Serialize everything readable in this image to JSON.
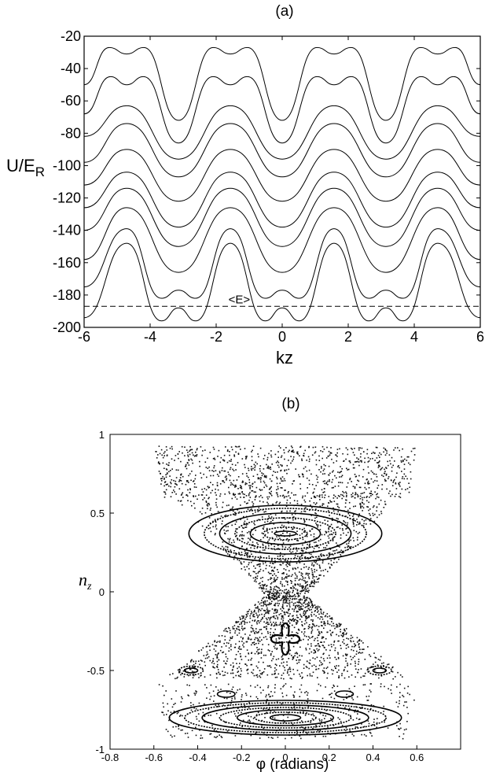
{
  "chart_data": [
    {
      "type": "line",
      "panel_label": "(a)",
      "xlabel": "kz",
      "ylabel_main": "U/E",
      "ylabel_sub": "R",
      "xlim": [
        -6,
        6
      ],
      "ylim": [
        -200,
        -20
      ],
      "x_ticks": [
        "-6",
        "-4",
        "-2",
        "0",
        "2",
        "4",
        "6"
      ],
      "y_ticks": [
        "-20",
        "-40",
        "-60",
        "-80",
        "-100",
        "-120",
        "-140",
        "-160",
        "-180",
        "-200"
      ],
      "x_tick_values": [
        -6,
        -4,
        -2,
        0,
        2,
        4,
        6
      ],
      "y_tick_values": [
        -20,
        -40,
        -60,
        -80,
        -100,
        -120,
        -140,
        -160,
        -180,
        -200
      ],
      "series": [
        {
          "x": [
            -6,
            -5.24,
            -4.71,
            -4.19,
            -3.14,
            -2.09,
            -1.57,
            -1.05,
            0,
            1.05,
            1.57,
            2.09,
            3.14,
            4.19,
            4.71,
            5.24,
            6
          ],
          "y": [
            -50,
            -27,
            -31,
            -27,
            -72,
            -27,
            -31,
            -27,
            -72,
            -27,
            -31,
            -27,
            -72,
            -27,
            -31,
            -27,
            -50
          ]
        },
        {
          "x": [
            -6,
            -5.2,
            -4.71,
            -4.2,
            -3.14,
            -2.1,
            -1.57,
            -1.05,
            0,
            1.05,
            1.57,
            2.1,
            3.14,
            4.2,
            4.71,
            5.2,
            6
          ],
          "y": [
            -68,
            -45,
            -50,
            -45,
            -86,
            -45,
            -50,
            -45,
            -86,
            -45,
            -50,
            -45,
            -86,
            -45,
            -50,
            -45,
            -68
          ]
        },
        {
          "x": [
            -6,
            -4.71,
            -3.14,
            -1.57,
            0,
            1.57,
            3.14,
            4.71,
            6
          ],
          "y": [
            -82,
            -63,
            -96,
            -63,
            -96,
            -63,
            -96,
            -63,
            -82
          ]
        },
        {
          "x": [
            -6,
            -4.71,
            -3.14,
            -1.57,
            0,
            1.57,
            3.14,
            4.71,
            6
          ],
          "y": [
            -98,
            -74,
            -107,
            -74,
            -107,
            -74,
            -107,
            -74,
            -98
          ]
        },
        {
          "x": [
            -6,
            -4.71,
            -3.14,
            -1.57,
            0,
            1.57,
            3.14,
            4.71,
            6
          ],
          "y": [
            -112,
            -90,
            -122,
            -90,
            -122,
            -90,
            -122,
            -90,
            -112
          ]
        },
        {
          "x": [
            -6,
            -4.71,
            -3.14,
            -1.57,
            0,
            1.57,
            3.14,
            4.71,
            6
          ],
          "y": [
            -126,
            -104,
            -138,
            -104,
            -138,
            -104,
            -138,
            -104,
            -126
          ]
        },
        {
          "x": [
            -6,
            -4.71,
            -3.14,
            -1.57,
            0,
            1.57,
            3.14,
            4.71,
            6
          ],
          "y": [
            -140,
            -114,
            -150,
            -114,
            -150,
            -114,
            -150,
            -114,
            -140
          ]
        },
        {
          "x": [
            -6,
            -4.71,
            -3.14,
            -1.57,
            0,
            1.57,
            3.14,
            4.71,
            6
          ],
          "y": [
            -158,
            -126,
            -166,
            -126,
            -166,
            -126,
            -166,
            -126,
            -158
          ]
        },
        {
          "x": [
            -6,
            -4.71,
            -3.66,
            -3.14,
            -2.62,
            -1.57,
            -0.52,
            0,
            0.52,
            1.57,
            2.62,
            3.14,
            3.66,
            4.71,
            6
          ],
          "y": [
            -175,
            -139,
            -182,
            -177,
            -182,
            -139,
            -182,
            -177,
            -182,
            -139,
            -182,
            -177,
            -182,
            -139,
            -175
          ]
        },
        {
          "x": [
            -6,
            -4.71,
            -3.66,
            -3.14,
            -2.62,
            -1.57,
            -0.52,
            0,
            0.52,
            1.57,
            2.62,
            3.14,
            3.66,
            4.71,
            6
          ],
          "y": [
            -194,
            -148,
            -196,
            -188,
            -196,
            -148,
            -196,
            -188,
            -196,
            -148,
            -196,
            -188,
            -196,
            -148,
            -194
          ]
        }
      ],
      "reference_line": {
        "y": -187,
        "style": "dashed",
        "label": "<E>",
        "label_x": -1.3
      }
    },
    {
      "type": "scatter",
      "panel_label": "(b)",
      "xlabel": "φ  (radians)",
      "ylabel": "n",
      "ylabel_sub": "z",
      "xlim": [
        -0.8,
        0.8
      ],
      "ylim": [
        -1,
        1
      ],
      "x_ticks": [
        "-0.8",
        "-0.6",
        "-0.4",
        "-0.2",
        "0",
        "0.2",
        "0.4",
        "0.6"
      ],
      "x_tick_values": [
        -0.8,
        -0.6,
        -0.4,
        -0.2,
        0,
        0.2,
        0.4,
        0.6
      ],
      "y_ticks": [
        "-1",
        "-0.5",
        "0",
        "0.5",
        "1"
      ],
      "y_tick_values": [
        -1,
        -0.5,
        0,
        0.5,
        1
      ],
      "chaotic_regions": [
        {
          "y_top": 0.93,
          "y_bottom": 0.6,
          "half_width_top": 0.6,
          "half_width_bottom": 0.56,
          "points": 900
        },
        {
          "y_top": 0.62,
          "y_bottom": -0.02,
          "half_width_top": 0.52,
          "half_width_bottom": 0.09,
          "points": 1100
        },
        {
          "y_top": -0.02,
          "y_bottom": -0.55,
          "half_width_top": 0.09,
          "half_width_bottom": 0.56,
          "points": 1300
        },
        {
          "y_top": -0.58,
          "y_bottom": -0.93,
          "half_width_top": 0.6,
          "half_width_bottom": 0.55,
          "points": 500
        }
      ],
      "islands": [
        {
          "cx": 0,
          "cy": 0.37,
          "rx": [
            0.05,
            0.1,
            0.16,
            0.23,
            0.3,
            0.37,
            0.44
          ],
          "ry": [
            0.015,
            0.04,
            0.07,
            0.1,
            0.13,
            0.16,
            0.18
          ]
        },
        {
          "cx": 0,
          "cy": -0.8,
          "rx": [
            0.07,
            0.14,
            0.22,
            0.3,
            0.38,
            0.46,
            0.53
          ],
          "ry": [
            0.02,
            0.035,
            0.05,
            0.065,
            0.08,
            0.095,
            0.11
          ]
        },
        {
          "cx": -0.43,
          "cy": -0.5,
          "rx": [
            0.03,
            0.055
          ],
          "ry": [
            0.015,
            0.028
          ]
        },
        {
          "cx": 0.43,
          "cy": -0.5,
          "rx": [
            0.03,
            0.055
          ],
          "ry": [
            0.015,
            0.028
          ]
        },
        {
          "cx": -0.27,
          "cy": -0.65,
          "rx": [
            0.04
          ],
          "ry": [
            0.02
          ]
        },
        {
          "cx": 0.27,
          "cy": -0.65,
          "rx": [
            0.04
          ],
          "ry": [
            0.02
          ]
        }
      ],
      "star_curve": {
        "cx": 0,
        "cy": -0.3,
        "rx": 0.05,
        "ry": 0.1
      }
    }
  ]
}
